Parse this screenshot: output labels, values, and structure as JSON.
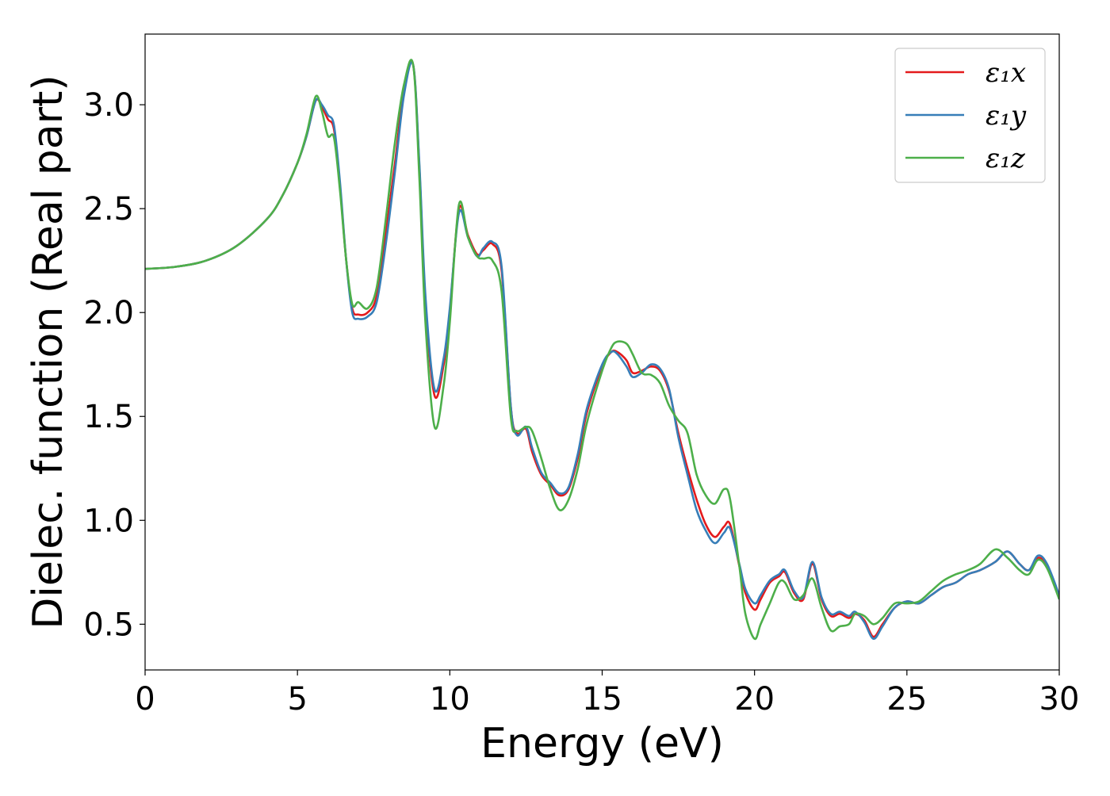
{
  "chart_data": {
    "type": "line",
    "title": "",
    "xlabel": "Energy (eV)",
    "ylabel": "Dielec. function (Real part)",
    "xlim": [
      0,
      30
    ],
    "ylim": [
      0.28,
      3.34
    ],
    "xticks": [
      0,
      5,
      10,
      15,
      20,
      25,
      30
    ],
    "xtick_labels": [
      "0",
      "5",
      "10",
      "15",
      "20",
      "25",
      "30"
    ],
    "yticks": [
      0.5,
      1.0,
      1.5,
      2.0,
      2.5,
      3.0
    ],
    "ytick_labels": [
      "0.5",
      "1.0",
      "1.5",
      "2.0",
      "2.5",
      "3.0"
    ],
    "grid": false,
    "legend_position": "top-right",
    "series": [
      {
        "name": "ε₁x",
        "color": "#e41a1c",
        "x": [
          0,
          1,
          2,
          3,
          4,
          4.5,
          5,
          5.3,
          5.6,
          5.8,
          6.0,
          6.2,
          6.4,
          6.6,
          6.8,
          7.0,
          7.3,
          7.6,
          7.9,
          8.2,
          8.5,
          8.8,
          9.0,
          9.2,
          9.5,
          9.8,
          10.0,
          10.3,
          10.6,
          10.9,
          11.1,
          11.4,
          11.7,
          12.0,
          12.2,
          12.5,
          12.7,
          13.0,
          13.3,
          13.6,
          13.9,
          14.2,
          14.5,
          15.0,
          15.3,
          15.5,
          15.8,
          16.0,
          16.3,
          16.6,
          16.9,
          17.2,
          17.5,
          17.8,
          18.1,
          18.4,
          18.7,
          19.0,
          19.2,
          19.5,
          19.7,
          20.0,
          20.2,
          20.5,
          20.8,
          21.0,
          21.3,
          21.6,
          21.9,
          22.2,
          22.5,
          22.8,
          23.1,
          23.3,
          23.6,
          23.9,
          24.2,
          24.6,
          25.0,
          25.4,
          25.8,
          26.2,
          26.6,
          27.0,
          27.4,
          27.9,
          28.3,
          28.7,
          29.0,
          29.3,
          29.6,
          30.0
        ],
        "y": [
          2.21,
          2.22,
          2.25,
          2.32,
          2.45,
          2.56,
          2.72,
          2.85,
          3.02,
          2.99,
          2.93,
          2.88,
          2.6,
          2.25,
          2.02,
          1.99,
          2.0,
          2.08,
          2.38,
          2.72,
          3.08,
          3.19,
          2.7,
          2.05,
          1.6,
          1.75,
          2.0,
          2.5,
          2.37,
          2.28,
          2.3,
          2.33,
          2.2,
          1.55,
          1.42,
          1.44,
          1.33,
          1.22,
          1.17,
          1.12,
          1.15,
          1.3,
          1.52,
          1.74,
          1.81,
          1.81,
          1.77,
          1.71,
          1.72,
          1.74,
          1.72,
          1.62,
          1.42,
          1.25,
          1.1,
          0.98,
          0.92,
          0.97,
          0.98,
          0.78,
          0.65,
          0.57,
          0.62,
          0.7,
          0.73,
          0.75,
          0.65,
          0.62,
          0.79,
          0.62,
          0.54,
          0.55,
          0.53,
          0.55,
          0.52,
          0.44,
          0.5,
          0.58,
          0.61,
          0.6,
          0.64,
          0.68,
          0.7,
          0.74,
          0.76,
          0.8,
          0.85,
          0.79,
          0.76,
          0.82,
          0.78,
          0.64
        ]
      },
      {
        "name": "ε₁y",
        "color": "#377eb8",
        "x": [
          0,
          1,
          2,
          3,
          4,
          4.5,
          5,
          5.3,
          5.6,
          5.8,
          6.0,
          6.2,
          6.4,
          6.6,
          6.8,
          7.0,
          7.3,
          7.6,
          7.9,
          8.2,
          8.5,
          8.8,
          9.0,
          9.2,
          9.5,
          9.8,
          10.0,
          10.3,
          10.6,
          10.9,
          11.1,
          11.4,
          11.7,
          12.0,
          12.2,
          12.5,
          12.7,
          13.0,
          13.3,
          13.6,
          13.9,
          14.2,
          14.5,
          15.0,
          15.3,
          15.5,
          15.8,
          16.0,
          16.3,
          16.6,
          16.9,
          17.2,
          17.5,
          17.8,
          18.1,
          18.4,
          18.7,
          19.0,
          19.2,
          19.5,
          19.7,
          20.0,
          20.2,
          20.5,
          20.8,
          21.0,
          21.3,
          21.6,
          21.9,
          22.2,
          22.5,
          22.8,
          23.1,
          23.3,
          23.6,
          23.9,
          24.2,
          24.6,
          25.0,
          25.4,
          25.8,
          26.2,
          26.6,
          27.0,
          27.4,
          27.9,
          28.3,
          28.7,
          29.0,
          29.3,
          29.6,
          30.0
        ],
        "y": [
          2.21,
          2.22,
          2.25,
          2.32,
          2.45,
          2.56,
          2.72,
          2.85,
          3.02,
          3.0,
          2.95,
          2.9,
          2.62,
          2.25,
          2.0,
          1.97,
          1.98,
          2.05,
          2.33,
          2.68,
          3.05,
          3.19,
          2.72,
          2.08,
          1.63,
          1.78,
          2.02,
          2.48,
          2.36,
          2.27,
          2.31,
          2.34,
          2.22,
          1.55,
          1.41,
          1.45,
          1.35,
          1.23,
          1.18,
          1.13,
          1.16,
          1.32,
          1.54,
          1.75,
          1.81,
          1.8,
          1.74,
          1.69,
          1.71,
          1.75,
          1.73,
          1.63,
          1.4,
          1.22,
          1.05,
          0.95,
          0.89,
          0.94,
          0.96,
          0.79,
          0.67,
          0.6,
          0.64,
          0.71,
          0.74,
          0.76,
          0.66,
          0.63,
          0.8,
          0.63,
          0.55,
          0.56,
          0.54,
          0.56,
          0.51,
          0.43,
          0.49,
          0.58,
          0.61,
          0.6,
          0.64,
          0.68,
          0.7,
          0.74,
          0.76,
          0.8,
          0.85,
          0.79,
          0.76,
          0.83,
          0.79,
          0.64
        ]
      },
      {
        "name": "ε₁z",
        "color": "#4daf4a",
        "x": [
          0,
          1,
          2,
          3,
          4,
          4.5,
          5,
          5.3,
          5.6,
          5.8,
          6.0,
          6.2,
          6.4,
          6.6,
          6.8,
          7.0,
          7.3,
          7.6,
          7.9,
          8.2,
          8.5,
          8.8,
          9.0,
          9.2,
          9.5,
          9.8,
          10.0,
          10.3,
          10.6,
          10.9,
          11.1,
          11.4,
          11.7,
          12.0,
          12.2,
          12.5,
          12.7,
          13.0,
          13.3,
          13.6,
          13.9,
          14.2,
          14.5,
          15.0,
          15.3,
          15.5,
          15.8,
          16.0,
          16.3,
          16.6,
          16.9,
          17.2,
          17.5,
          17.8,
          18.1,
          18.4,
          18.7,
          19.0,
          19.2,
          19.5,
          19.7,
          20.0,
          20.2,
          20.5,
          20.8,
          21.0,
          21.3,
          21.6,
          21.9,
          22.2,
          22.5,
          22.8,
          23.1,
          23.3,
          23.6,
          23.9,
          24.2,
          24.6,
          25.0,
          25.4,
          25.8,
          26.2,
          26.6,
          27.0,
          27.4,
          27.9,
          28.3,
          28.7,
          29.0,
          29.3,
          29.6,
          30.0
        ],
        "y": [
          2.21,
          2.22,
          2.25,
          2.32,
          2.45,
          2.56,
          2.72,
          2.86,
          3.04,
          2.97,
          2.85,
          2.84,
          2.58,
          2.25,
          2.04,
          2.05,
          2.02,
          2.12,
          2.45,
          2.82,
          3.1,
          3.19,
          2.65,
          1.95,
          1.45,
          1.65,
          1.95,
          2.52,
          2.36,
          2.27,
          2.26,
          2.25,
          2.1,
          1.5,
          1.43,
          1.45,
          1.43,
          1.3,
          1.15,
          1.05,
          1.1,
          1.25,
          1.47,
          1.72,
          1.83,
          1.86,
          1.85,
          1.8,
          1.71,
          1.7,
          1.66,
          1.55,
          1.48,
          1.42,
          1.22,
          1.12,
          1.08,
          1.15,
          1.1,
          0.78,
          0.55,
          0.43,
          0.5,
          0.6,
          0.7,
          0.7,
          0.62,
          0.64,
          0.72,
          0.58,
          0.47,
          0.49,
          0.5,
          0.55,
          0.54,
          0.5,
          0.53,
          0.6,
          0.6,
          0.61,
          0.66,
          0.71,
          0.74,
          0.76,
          0.79,
          0.86,
          0.82,
          0.76,
          0.74,
          0.81,
          0.77,
          0.62
        ]
      }
    ]
  }
}
